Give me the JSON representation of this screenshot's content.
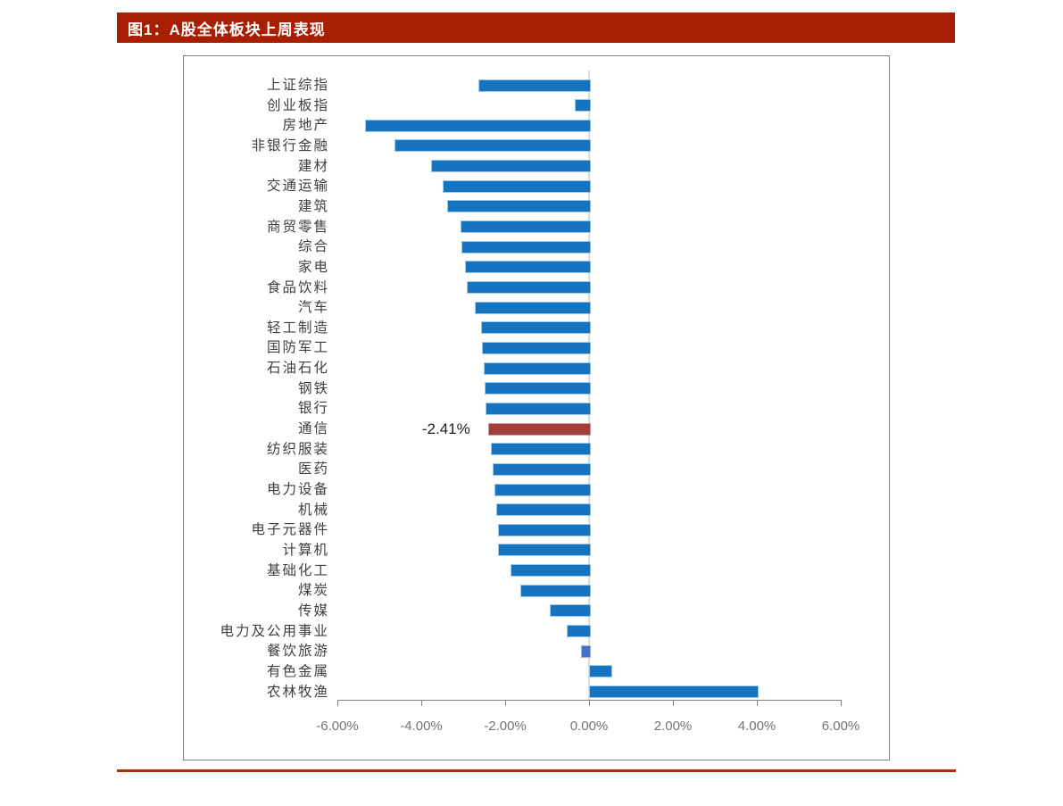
{
  "header": {
    "title": "图1：A股全体板块上周表现",
    "bg_color": "#A81E00",
    "text_color": "#FFFFFF"
  },
  "footer": {
    "accent_line_color": "#B02C08"
  },
  "chart_data": {
    "type": "bar",
    "orientation": "horizontal",
    "title": "A股全体板块上周表现",
    "unit": "%",
    "xlim": [
      -6,
      6
    ],
    "x_ticks": [
      "-6.00%",
      "-4.00%",
      "-2.00%",
      "0.00%",
      "2.00%",
      "4.00%",
      "6.00%"
    ],
    "grid": "zero-line-only",
    "legend": "none",
    "colors": {
      "default": "#1573BF",
      "default_border": "#9DC9EC",
      "highlight": "#A43D3A",
      "highlight_border": "#C89C9A",
      "special": "#4472C4",
      "special_border": "#9FB5E2",
      "axis": "#808080",
      "zero_gridline": "#DCDCDC",
      "tick_label": "#737373"
    },
    "points": [
      {
        "label": "上证综指",
        "value": -2.63,
        "color": "default"
      },
      {
        "label": "创业板指",
        "value": -0.35,
        "color": "default"
      },
      {
        "label": "房地产",
        "value": -5.34,
        "color": "default"
      },
      {
        "label": "非银行金融",
        "value": -4.63,
        "color": "default"
      },
      {
        "label": "建材",
        "value": -3.77,
        "color": "default"
      },
      {
        "label": "交通运输",
        "value": -3.5,
        "color": "default"
      },
      {
        "label": "建筑",
        "value": -3.38,
        "color": "default"
      },
      {
        "label": "商贸零售",
        "value": -3.06,
        "color": "default"
      },
      {
        "label": "综合",
        "value": -3.04,
        "color": "default"
      },
      {
        "label": "家电",
        "value": -2.95,
        "color": "default"
      },
      {
        "label": "食品饮料",
        "value": -2.92,
        "color": "default"
      },
      {
        "label": "汽车",
        "value": -2.72,
        "color": "default"
      },
      {
        "label": "轻工制造",
        "value": -2.58,
        "color": "default"
      },
      {
        "label": "国防军工",
        "value": -2.55,
        "color": "default"
      },
      {
        "label": "石油石化",
        "value": -2.52,
        "color": "default"
      },
      {
        "label": "钢铁",
        "value": -2.48,
        "color": "default"
      },
      {
        "label": "银行",
        "value": -2.46,
        "color": "default"
      },
      {
        "label": "通信",
        "value": -2.41,
        "color": "highlight",
        "data_label": "-2.41%"
      },
      {
        "label": "纺织服装",
        "value": -2.35,
        "color": "default"
      },
      {
        "label": "医药",
        "value": -2.29,
        "color": "default"
      },
      {
        "label": "电力设备",
        "value": -2.25,
        "color": "default"
      },
      {
        "label": "机械",
        "value": -2.22,
        "color": "default"
      },
      {
        "label": "电子元器件",
        "value": -2.18,
        "color": "default"
      },
      {
        "label": "计算机",
        "value": -2.17,
        "color": "default"
      },
      {
        "label": "基础化工",
        "value": -1.87,
        "color": "default"
      },
      {
        "label": "煤炭",
        "value": -1.64,
        "color": "default"
      },
      {
        "label": "传媒",
        "value": -0.93,
        "color": "default"
      },
      {
        "label": "电力及公用事业",
        "value": -0.53,
        "color": "default"
      },
      {
        "label": "餐饮旅游",
        "value": -0.19,
        "color": "special"
      },
      {
        "label": "有色金属",
        "value": 0.5,
        "color": "default"
      },
      {
        "label": "农林牧渔",
        "value": 4.01,
        "color": "default"
      }
    ]
  }
}
